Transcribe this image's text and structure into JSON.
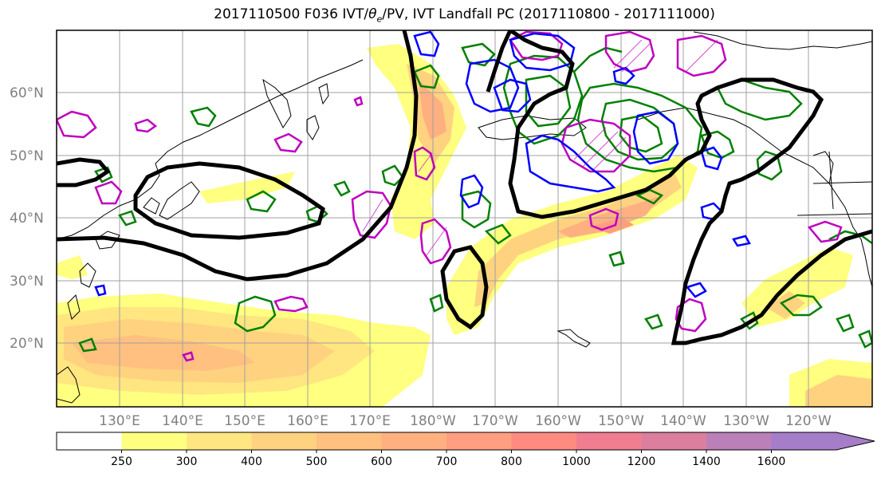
{
  "title_prefix": "2017110500 F036 IVT/",
  "title_theta": "θ",
  "title_theta_sub": "e",
  "title_suffix": "/PV, IVT Landfall PC (2017110800 - 2017111000)",
  "lat_labels": [
    "60°N",
    "50°N",
    "40°N",
    "30°N",
    "20°N"
  ],
  "lon_labels": [
    "130°E",
    "140°E",
    "150°E",
    "160°E",
    "170°E",
    "180°W",
    "170°W",
    "160°W",
    "150°W",
    "140°W",
    "130°W",
    "120°W"
  ],
  "colorbar": {
    "ticks": [
      "250",
      "300",
      "400",
      "500",
      "600",
      "700",
      "800",
      "1000",
      "1200",
      "1400",
      "1600"
    ],
    "colors": [
      "#ffffff",
      "#ffff80",
      "#ffe680",
      "#ffd280",
      "#ffc080",
      "#ffb080",
      "#ff9e80",
      "#ff8a80",
      "#f07e90",
      "#dc7e9e",
      "#bb80b8",
      "#a67dc8"
    ]
  },
  "legend_colors": {
    "ivt_contour": "#000000",
    "pv_contour": "#0000ff",
    "theta_contour": "#008000",
    "magenta_contour": "#bf00bf"
  }
}
